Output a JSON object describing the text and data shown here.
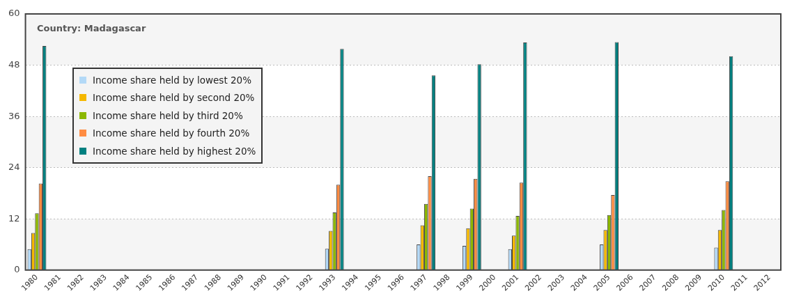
{
  "chart_data": {
    "type": "bar",
    "title": "Country: Madagascar",
    "categories": [
      "1980",
      "1981",
      "1982",
      "1983",
      "1984",
      "1985",
      "1986",
      "1987",
      "1988",
      "1989",
      "1990",
      "1991",
      "1992",
      "1993",
      "1994",
      "1995",
      "1996",
      "1997",
      "1998",
      "1999",
      "2000",
      "2001",
      "2002",
      "2003",
      "2004",
      "2005",
      "2006",
      "2007",
      "2008",
      "2009",
      "2010",
      "2011",
      "2012"
    ],
    "series": [
      {
        "name": "Income share held by lowest 20%",
        "color": "#b3d9f7",
        "values": [
          4.9,
          null,
          null,
          null,
          null,
          null,
          null,
          null,
          null,
          null,
          null,
          null,
          null,
          5.0,
          null,
          null,
          null,
          6.0,
          null,
          5.7,
          null,
          4.9,
          null,
          null,
          null,
          6.0,
          null,
          null,
          null,
          null,
          5.3,
          null,
          null
        ]
      },
      {
        "name": "Income share held by second 20%",
        "color": "#f5b800",
        "values": [
          8.7,
          null,
          null,
          null,
          null,
          null,
          null,
          null,
          null,
          null,
          null,
          null,
          null,
          9.2,
          null,
          null,
          null,
          10.5,
          null,
          9.8,
          null,
          8.1,
          null,
          null,
          null,
          9.4,
          null,
          null,
          null,
          null,
          9.4,
          null,
          null
        ]
      },
      {
        "name": "Income share held by third 20%",
        "color": "#8cb800",
        "values": [
          13.3,
          null,
          null,
          null,
          null,
          null,
          null,
          null,
          null,
          null,
          null,
          null,
          null,
          13.5,
          null,
          null,
          null,
          15.5,
          null,
          14.4,
          null,
          12.7,
          null,
          null,
          null,
          12.9,
          null,
          null,
          null,
          null,
          14.1,
          null,
          null
        ]
      },
      {
        "name": "Income share held by fourth 20%",
        "color": "#ff8c42",
        "values": [
          20.3,
          null,
          null,
          null,
          null,
          null,
          null,
          null,
          null,
          null,
          null,
          null,
          null,
          20.0,
          null,
          null,
          null,
          22.0,
          null,
          21.4,
          null,
          20.5,
          null,
          null,
          null,
          17.6,
          null,
          null,
          null,
          null,
          20.8,
          null,
          null
        ]
      },
      {
        "name": "Income share held by highest 20%",
        "color": "#008080",
        "values": [
          52.5,
          null,
          null,
          null,
          null,
          null,
          null,
          null,
          null,
          null,
          null,
          null,
          null,
          51.8,
          null,
          null,
          null,
          45.6,
          null,
          48.2,
          null,
          53.3,
          null,
          null,
          null,
          53.4,
          null,
          null,
          null,
          null,
          50.1,
          null,
          null
        ]
      }
    ],
    "ylim": [
      0,
      60
    ],
    "yticks": [
      0,
      12,
      24,
      36,
      48,
      60
    ],
    "grid": "y",
    "legend": "top left"
  }
}
